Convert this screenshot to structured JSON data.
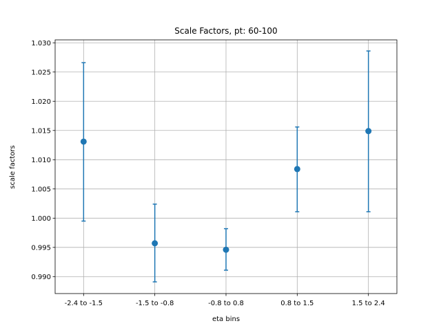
{
  "chart_data": {
    "type": "scatter",
    "title": "Scale Factors, pt: 60-100",
    "xlabel": "eta bins",
    "ylabel": "scale factors",
    "categories": [
      "-2.4 to -1.5",
      "-1.5 to -0.8",
      "-0.8 to 0.8",
      "0.8 to 1.5",
      "1.5 to 2.4"
    ],
    "series": [
      {
        "values": [
          1.0131,
          0.9957,
          0.9946,
          1.0084,
          1.0149
        ],
        "err_low": [
          0.0136,
          0.0066,
          0.0035,
          0.0073,
          0.0138
        ],
        "err_high": [
          0.0135,
          0.0067,
          0.0036,
          0.0072,
          0.0137
        ],
        "color": "#1f77b4"
      }
    ],
    "ylim": [
      0.9871,
      1.0305
    ],
    "yticks": [
      0.99,
      0.995,
      1.0,
      1.005,
      1.01,
      1.015,
      1.02,
      1.025,
      1.03
    ],
    "ytick_labels": [
      "0.990",
      "0.995",
      "1.000",
      "1.005",
      "1.010",
      "1.015",
      "1.020",
      "1.025",
      "1.030"
    ],
    "grid": true,
    "error_bars": true
  }
}
